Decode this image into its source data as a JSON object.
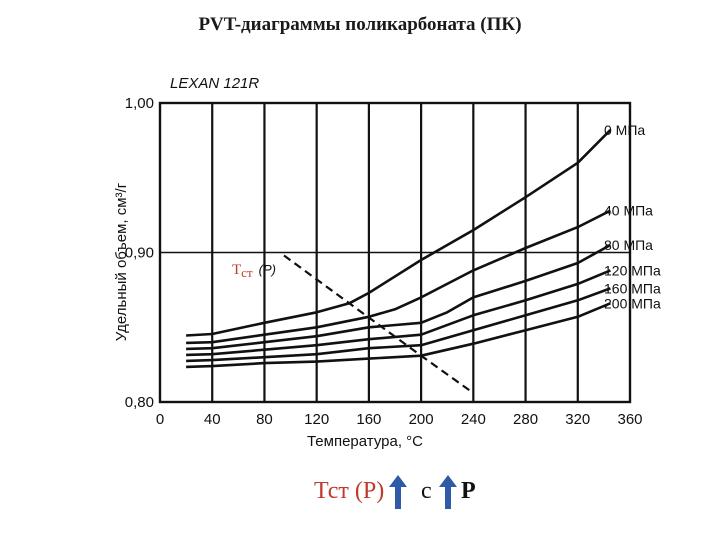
{
  "slide": {
    "title": "PVT-диаграммы поликарбоната (ПК)"
  },
  "chart_data": {
    "type": "line",
    "material_label": "LEXAN 121R",
    "xlabel": "Температура, °С",
    "ylabel": "Удельный объем, см³/г",
    "xlim": [
      0,
      360
    ],
    "ylim": [
      0.8,
      1.0
    ],
    "x_ticks": [
      "0",
      "40",
      "80",
      "120",
      "160",
      "200",
      "240",
      "280",
      "320",
      "360"
    ],
    "y_ticks": [
      "0,80",
      "0,90",
      "1,00"
    ],
    "grid": {
      "vertical": true,
      "horizontal_at": [
        0.9
      ]
    },
    "series": [
      {
        "name": "0 МПа",
        "points": [
          [
            20,
            0.8445
          ],
          [
            40,
            0.8455
          ],
          [
            80,
            0.853
          ],
          [
            120,
            0.86
          ],
          [
            145,
            0.866
          ],
          [
            160,
            0.873
          ],
          [
            200,
            0.895
          ],
          [
            240,
            0.915
          ],
          [
            280,
            0.937
          ],
          [
            320,
            0.96
          ],
          [
            345,
            0.982
          ]
        ]
      },
      {
        "name": "40 МПа",
        "points": [
          [
            20,
            0.8395
          ],
          [
            40,
            0.84
          ],
          [
            80,
            0.845
          ],
          [
            120,
            0.85
          ],
          [
            160,
            0.857
          ],
          [
            180,
            0.862
          ],
          [
            200,
            0.87
          ],
          [
            240,
            0.888
          ],
          [
            280,
            0.903
          ],
          [
            320,
            0.917
          ],
          [
            345,
            0.928
          ]
        ]
      },
      {
        "name": "80 МПа",
        "points": [
          [
            20,
            0.8355
          ],
          [
            40,
            0.836
          ],
          [
            80,
            0.84
          ],
          [
            120,
            0.844
          ],
          [
            160,
            0.85
          ],
          [
            200,
            0.853
          ],
          [
            220,
            0.86
          ],
          [
            240,
            0.87
          ],
          [
            280,
            0.881
          ],
          [
            320,
            0.893
          ],
          [
            345,
            0.905
          ]
        ]
      },
      {
        "name": "120 МПа",
        "points": [
          [
            20,
            0.8315
          ],
          [
            40,
            0.832
          ],
          [
            80,
            0.835
          ],
          [
            120,
            0.838
          ],
          [
            160,
            0.842
          ],
          [
            200,
            0.845
          ],
          [
            240,
            0.858
          ],
          [
            280,
            0.868
          ],
          [
            320,
            0.879
          ],
          [
            345,
            0.888
          ]
        ]
      },
      {
        "name": "160 МПа",
        "points": [
          [
            20,
            0.8275
          ],
          [
            40,
            0.828
          ],
          [
            80,
            0.83
          ],
          [
            120,
            0.832
          ],
          [
            160,
            0.836
          ],
          [
            200,
            0.838
          ],
          [
            240,
            0.848
          ],
          [
            280,
            0.858
          ],
          [
            320,
            0.868
          ],
          [
            345,
            0.876
          ]
        ]
      },
      {
        "name": "200 МПа",
        "points": [
          [
            20,
            0.8235
          ],
          [
            40,
            0.824
          ],
          [
            80,
            0.826
          ],
          [
            120,
            0.827
          ],
          [
            160,
            0.829
          ],
          [
            200,
            0.831
          ],
          [
            240,
            0.839
          ],
          [
            280,
            0.848
          ],
          [
            320,
            0.857
          ],
          [
            345,
            0.866
          ]
        ]
      }
    ],
    "glass_transition_line": {
      "label_main": "Т",
      "label_sub": "ст",
      "label_arg": "(P)",
      "points": [
        [
          95,
          0.898
        ],
        [
          145,
          0.866
        ],
        [
          200,
          0.831
        ],
        [
          240,
          0.806
        ]
      ]
    }
  },
  "footer": {
    "tg_text": "Тст (Р)",
    "condition": "с",
    "parameter": "Р",
    "arrow_color": "#2f5aa8"
  }
}
